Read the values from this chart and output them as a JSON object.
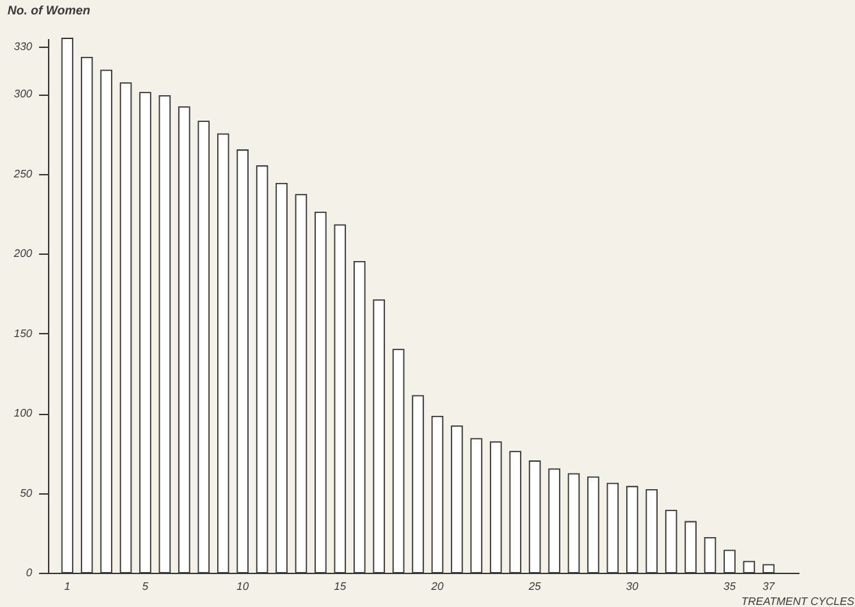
{
  "chart_data": {
    "type": "bar",
    "xlabel": "TREATMENT CYCLES",
    "ylabel": "No. of Women",
    "categories": [
      "1",
      null,
      null,
      null,
      "5",
      null,
      null,
      null,
      null,
      "10",
      null,
      null,
      null,
      null,
      "15",
      null,
      null,
      null,
      null,
      "20",
      null,
      null,
      null,
      null,
      "25",
      null,
      null,
      null,
      null,
      "30",
      null,
      null,
      null,
      null,
      "35",
      null,
      "37"
    ],
    "values": [
      335,
      323,
      315,
      307,
      301,
      299,
      292,
      283,
      275,
      265,
      255,
      244,
      237,
      226,
      218,
      195,
      171,
      140,
      111,
      98,
      92,
      84,
      82,
      76,
      70,
      65,
      62,
      60,
      56,
      54,
      52,
      39,
      32,
      22,
      14,
      7,
      5
    ],
    "color": "#ffffff",
    "ylim": [
      0,
      335
    ],
    "yticks": [
      0,
      50,
      100,
      150,
      200,
      250,
      300,
      330
    ],
    "grid": false
  }
}
